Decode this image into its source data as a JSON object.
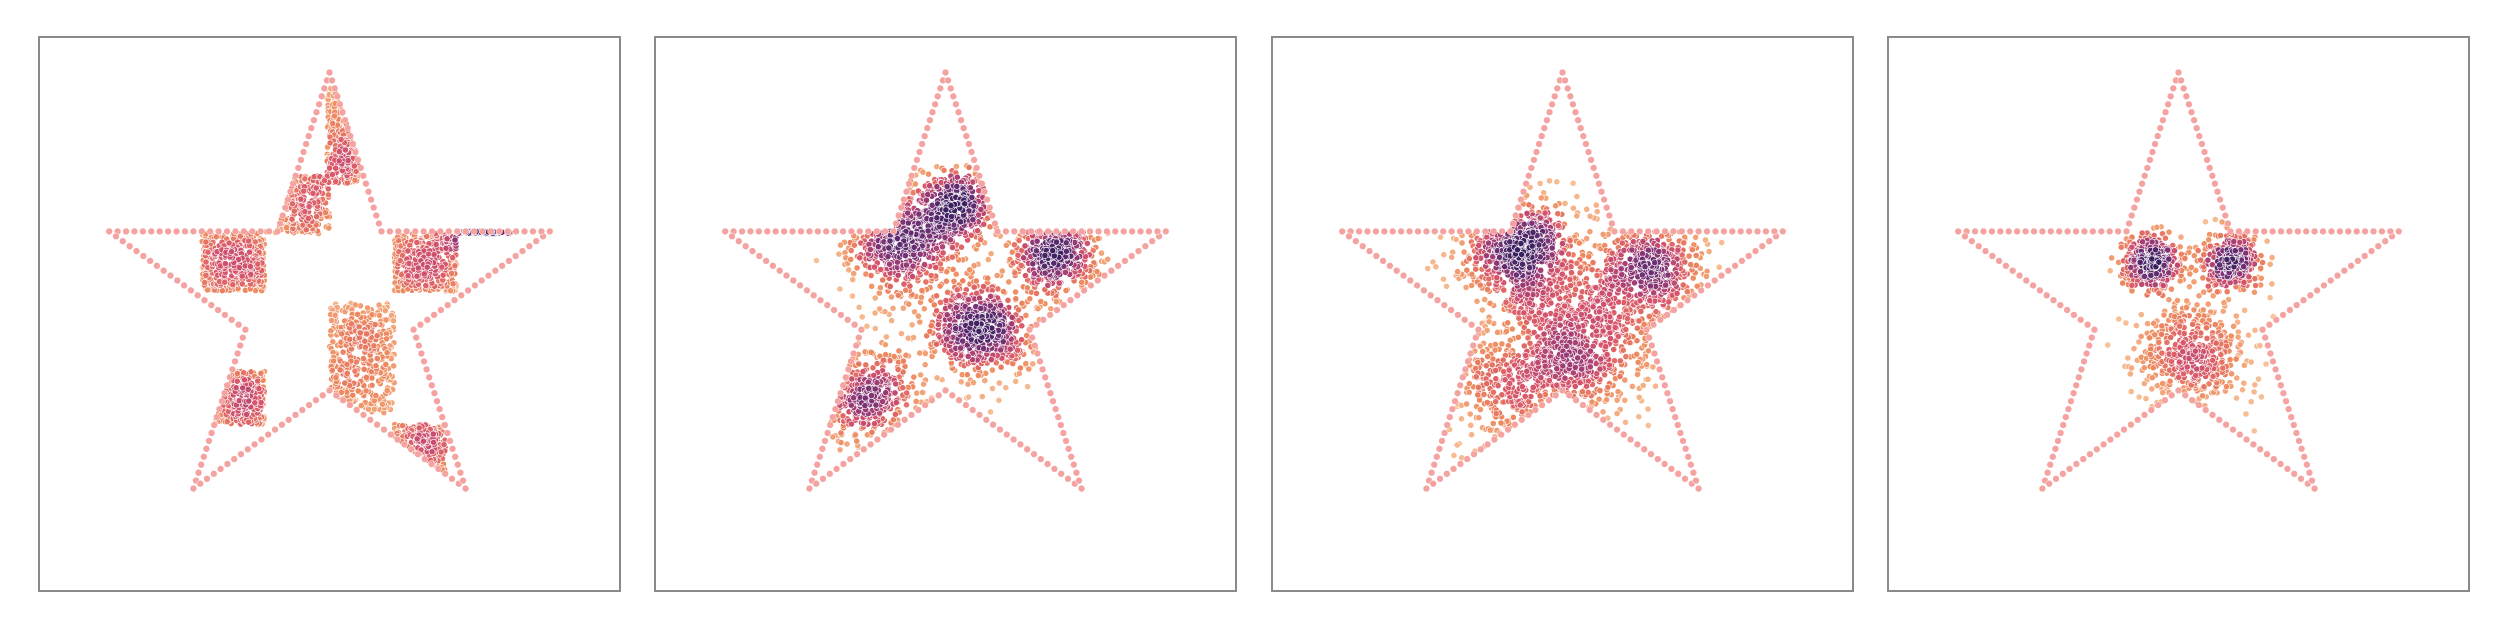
{
  "chart_data": [
    {
      "type": "scatter",
      "title": "",
      "xlabel": "",
      "ylabel": "",
      "xlim": [
        -1.25,
        1.25
      ],
      "ylim": [
        -1.25,
        1.15
      ],
      "grid": false,
      "colormap": [
        "#f8c49a",
        "#ee8a5f",
        "#d9566b",
        "#a43d74",
        "#6b2f74",
        "#3b2060"
      ],
      "boundary": {
        "shape": "star",
        "points": 5,
        "outer_radius": 1.0,
        "inner_radius": 0.382,
        "color": "#f4a3a1",
        "marker_count": 200
      },
      "points": {
        "kind": "checkerboard-squares",
        "count": 2600,
        "squares": [
          {
            "x0": -0.55,
            "x1": -0.28,
            "y0": 0.05,
            "y1": 0.3
          },
          {
            "x0": -0.28,
            "x1": 0.0,
            "y0": 0.3,
            "y1": 0.55
          },
          {
            "x0": -0.01,
            "x1": 0.13,
            "y0": 0.52,
            "y1": 0.93
          },
          {
            "x0": 0.28,
            "x1": 0.55,
            "y0": 0.05,
            "y1": 0.3
          },
          {
            "x0": 0.55,
            "x1": 0.78,
            "y0": 0.3,
            "y1": 0.31
          },
          {
            "x0": 0.0,
            "x1": 0.28,
            "y0": -0.48,
            "y1": -0.0
          },
          {
            "x0": -0.55,
            "x1": -0.28,
            "y0": -0.53,
            "y1": -0.3
          },
          {
            "x0": 0.28,
            "x1": 0.5,
            "y0": -0.77,
            "y1": -0.53
          }
        ]
      }
    },
    {
      "type": "scatter",
      "title": "",
      "xlabel": "",
      "ylabel": "",
      "xlim": [
        -1.25,
        1.25
      ],
      "ylim": [
        -1.25,
        1.15
      ],
      "grid": false,
      "colormap": [
        "#f8c49a",
        "#ee8a5f",
        "#d9566b",
        "#a43d74",
        "#6b2f74",
        "#3b2060"
      ],
      "boundary": {
        "shape": "star",
        "points": 5,
        "outer_radius": 1.0,
        "inner_radius": 0.382,
        "color": "#f4a3a1",
        "marker_count": 200
      },
      "points": {
        "kind": "gaussian-blobs",
        "count": 2400,
        "blobs": [
          {
            "x": -0.2,
            "y": 0.27,
            "sd": 0.12,
            "w": 0.27
          },
          {
            "x": 0.15,
            "y": -0.12,
            "sd": 0.11,
            "w": 0.25
          },
          {
            "x": 0.48,
            "y": 0.22,
            "sd": 0.09,
            "w": 0.16
          },
          {
            "x": -0.33,
            "y": -0.4,
            "sd": 0.12,
            "w": 0.17
          },
          {
            "x": 0.05,
            "y": 0.42,
            "sd": 0.08,
            "w": 0.15
          }
        ]
      }
    },
    {
      "type": "scatter",
      "title": "",
      "xlabel": "",
      "ylabel": "",
      "xlim": [
        -1.25,
        1.25
      ],
      "ylim": [
        -1.25,
        1.15
      ],
      "grid": false,
      "colormap": [
        "#f8c49a",
        "#ee8a5f",
        "#d9566b",
        "#a43d74",
        "#6b2f74",
        "#3b2060"
      ],
      "boundary": {
        "shape": "star",
        "points": 5,
        "outer_radius": 1.0,
        "inner_radius": 0.382,
        "color": "#f4a3a1",
        "marker_count": 200
      },
      "points": {
        "kind": "gaussian-blobs",
        "count": 2300,
        "blobs": [
          {
            "x": -0.18,
            "y": 0.22,
            "sd": 0.13,
            "w": 0.33
          },
          {
            "x": 0.35,
            "y": 0.14,
            "sd": 0.12,
            "w": 0.24
          },
          {
            "x": 0.08,
            "y": -0.2,
            "sd": 0.15,
            "w": 0.28
          },
          {
            "x": -0.25,
            "y": -0.35,
            "sd": 0.15,
            "w": 0.15
          }
        ]
      }
    },
    {
      "type": "scatter",
      "title": "",
      "xlabel": "",
      "ylabel": "",
      "xlim": [
        -1.25,
        1.25
      ],
      "ylim": [
        -1.25,
        1.15
      ],
      "grid": false,
      "colormap": [
        "#f8c49a",
        "#ee8a5f",
        "#d9566b",
        "#a43d74",
        "#6b2f74",
        "#3b2060"
      ],
      "boundary": {
        "shape": "star",
        "points": 5,
        "outer_radius": 1.0,
        "inner_radius": 0.382,
        "color": "#f4a3a1",
        "marker_count": 200
      },
      "points": {
        "kind": "gaussian-blobs",
        "count": 1300,
        "blobs": [
          {
            "x": -0.12,
            "y": 0.18,
            "sd": 0.06,
            "w": 0.3
          },
          {
            "x": 0.23,
            "y": 0.18,
            "sd": 0.06,
            "w": 0.3
          },
          {
            "x": 0.05,
            "y": -0.22,
            "sd": 0.12,
            "w": 0.4
          }
        ]
      }
    }
  ]
}
